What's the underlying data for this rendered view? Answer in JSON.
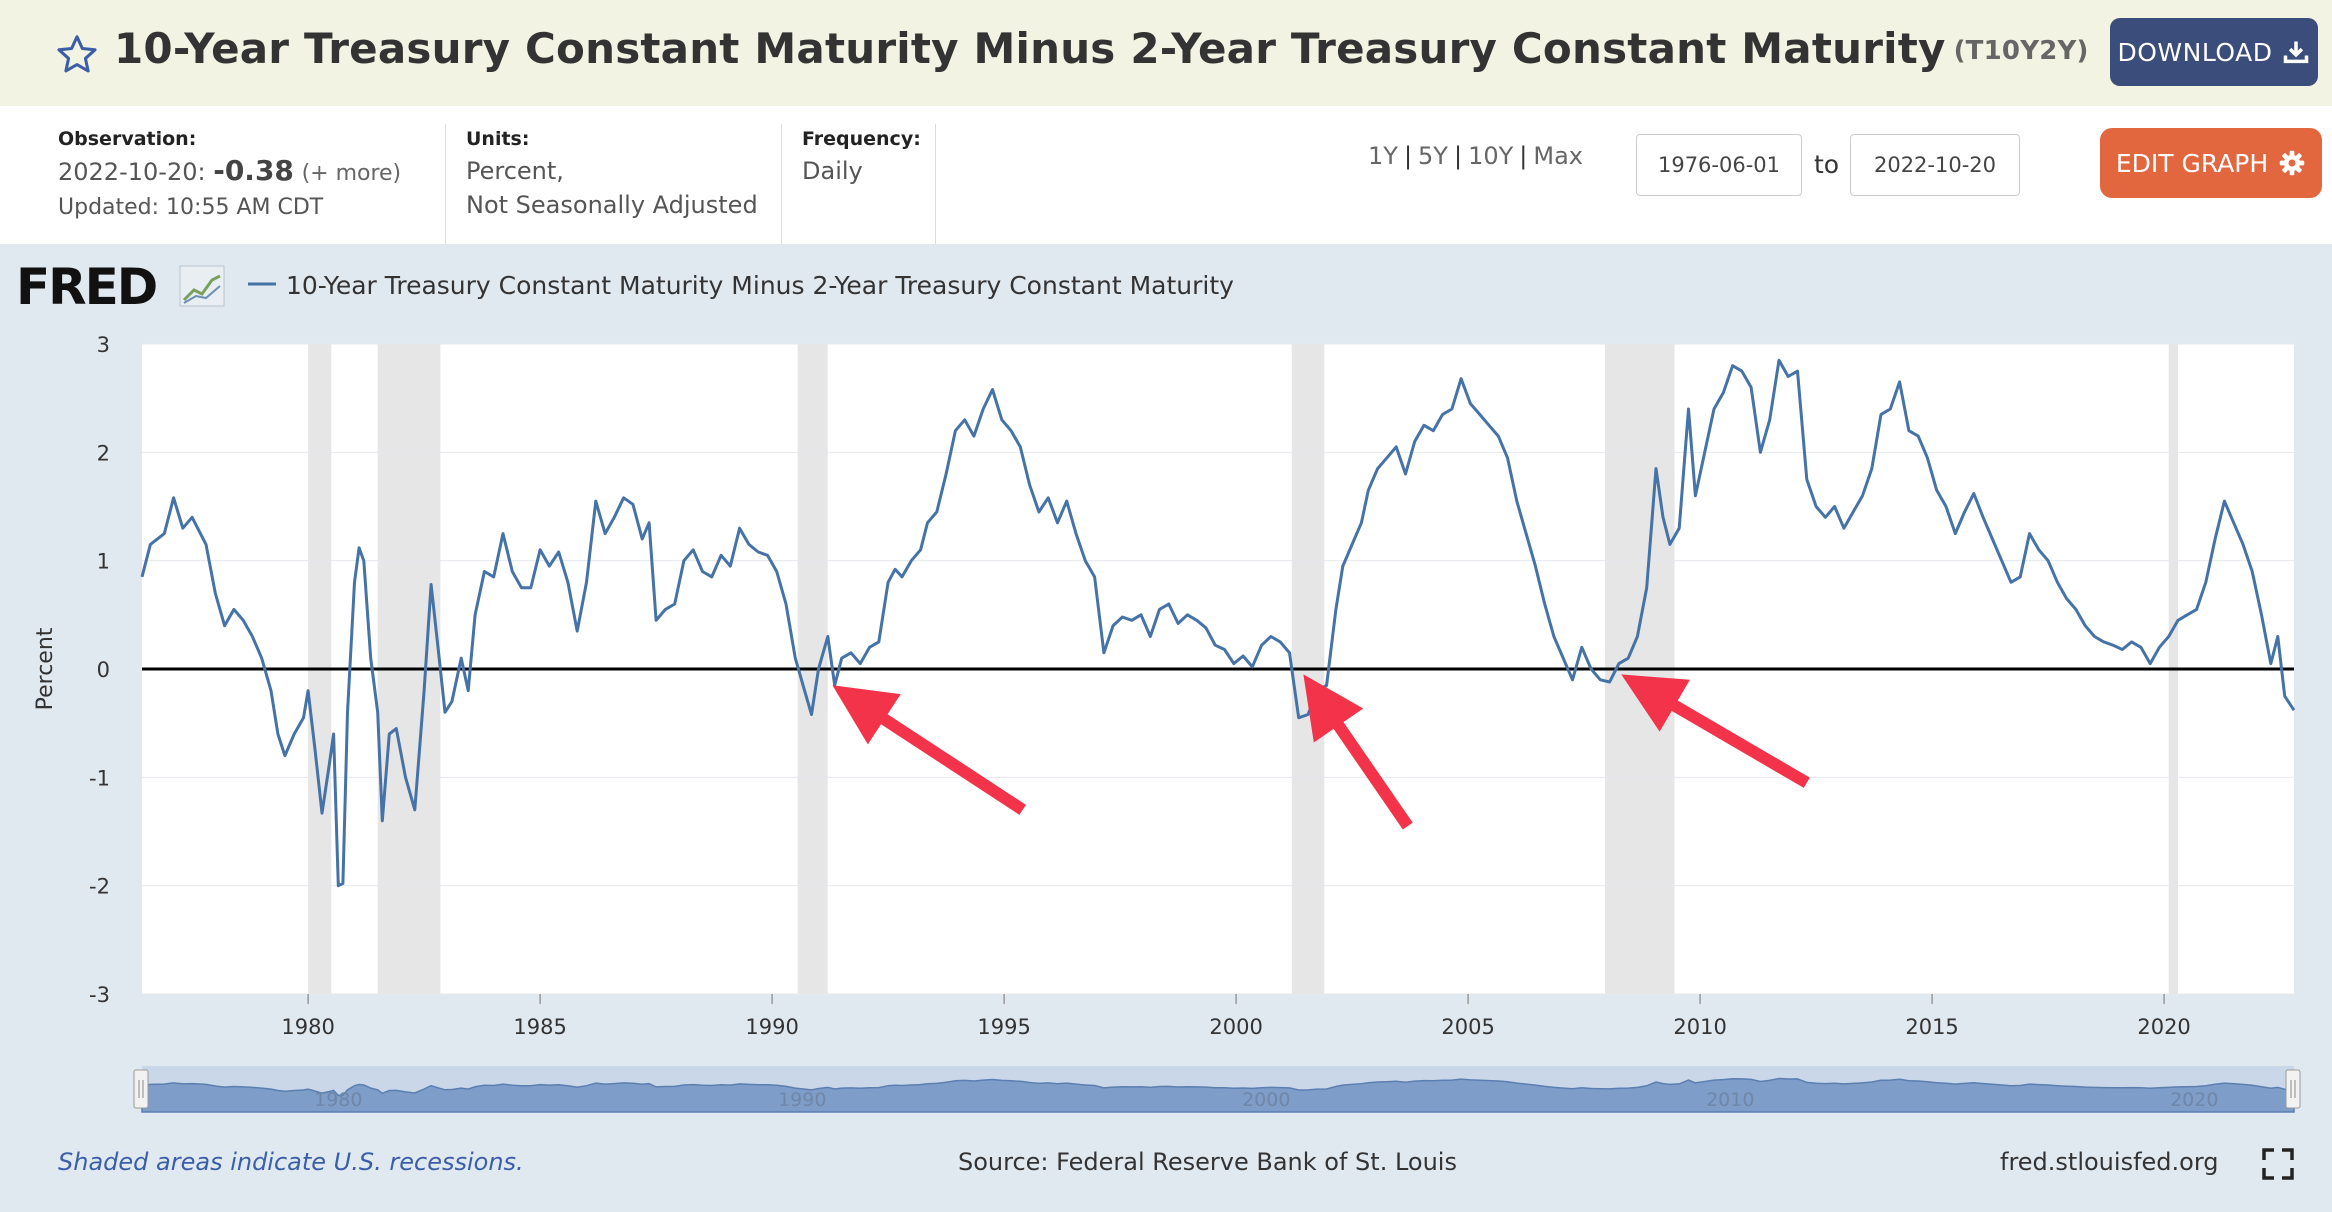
{
  "header": {
    "title": "10-Year Treasury Constant Maturity Minus 2-Year Treasury Constant Maturity",
    "series_id": "(T10Y2Y)",
    "download_label": "DOWNLOAD",
    "star_icon": "star-outline-icon",
    "download_icon": "download-icon"
  },
  "info": {
    "observation_label": "Observation:",
    "observation_date": "2022-10-20:",
    "observation_value": "-0.38",
    "observation_more": "(+ more)",
    "updated": "Updated: 10:55 AM CDT",
    "units_label": "Units:",
    "units_line1": "Percent,",
    "units_line2": "Not Seasonally Adjusted",
    "frequency_label": "Frequency:",
    "frequency_value": "Daily"
  },
  "controls": {
    "ranges": [
      "1Y",
      "5Y",
      "10Y",
      "Max"
    ],
    "start_date": "1976-06-01",
    "to_label": "to",
    "end_date": "2022-10-20",
    "edit_label": "EDIT GRAPH",
    "edit_icon": "gear-icon"
  },
  "footer": {
    "recession_note": "Shaded areas indicate U.S. recessions.",
    "source": "Source: Federal Reserve Bank of St. Louis",
    "site": "fred.stlouisfed.org",
    "fullscreen_icon": "fullscreen-icon"
  },
  "colors": {
    "line": "#4572a7",
    "recession": "#e6e6e6",
    "arrow": "#f2334a",
    "navigator": "#7f9dc9"
  },
  "chart_data": {
    "type": "line",
    "logo": "FRED",
    "legend": "10-Year Treasury Constant Maturity Minus 2-Year Treasury Constant Maturity",
    "ylabel": "Percent",
    "xlabel": "",
    "xlim": [
      1976.42,
      2022.8
    ],
    "ylim": [
      -3,
      3
    ],
    "yticks": [
      3,
      2,
      1,
      0,
      -1,
      -2,
      -3
    ],
    "xticks": [
      1980,
      1985,
      1990,
      1995,
      2000,
      2005,
      2010,
      2015,
      2020
    ],
    "navigator_labels": [
      "1980",
      "1990",
      "2000",
      "2010",
      "2020"
    ],
    "recessions": [
      [
        1980.0,
        1980.5
      ],
      [
        1981.5,
        1982.85
      ],
      [
        1990.55,
        1991.2
      ],
      [
        2001.2,
        2001.9
      ],
      [
        2007.95,
        2009.45
      ],
      [
        2020.1,
        2020.3
      ]
    ],
    "zero_line": 0,
    "arrows": [
      {
        "from": [
          1995.4,
          -1.3
        ],
        "to": [
          1991.3,
          -0.15
        ]
      },
      {
        "from": [
          2003.7,
          -1.45
        ],
        "to": [
          2001.45,
          -0.05
        ]
      },
      {
        "from": [
          2012.3,
          -1.05
        ],
        "to": [
          2008.3,
          -0.05
        ]
      }
    ],
    "series": [
      {
        "name": "10-Year Treasury Constant Maturity Minus 2-Year Treasury Constant Maturity",
        "points": [
          [
            1976.42,
            0.85
          ],
          [
            1976.6,
            1.15
          ],
          [
            1976.9,
            1.25
          ],
          [
            1977.1,
            1.58
          ],
          [
            1977.3,
            1.3
          ],
          [
            1977.5,
            1.4
          ],
          [
            1977.8,
            1.15
          ],
          [
            1978.0,
            0.7
          ],
          [
            1978.2,
            0.4
          ],
          [
            1978.4,
            0.55
          ],
          [
            1978.6,
            0.45
          ],
          [
            1978.8,
            0.3
          ],
          [
            1979.0,
            0.1
          ],
          [
            1979.2,
            -0.2
          ],
          [
            1979.35,
            -0.6
          ],
          [
            1979.5,
            -0.8
          ],
          [
            1979.7,
            -0.6
          ],
          [
            1979.9,
            -0.45
          ],
          [
            1980.0,
            -0.2
          ],
          [
            1980.15,
            -0.75
          ],
          [
            1980.3,
            -1.33
          ],
          [
            1980.45,
            -0.9
          ],
          [
            1980.55,
            -0.6
          ],
          [
            1980.65,
            -2.0
          ],
          [
            1980.75,
            -1.98
          ],
          [
            1980.85,
            -0.4
          ],
          [
            1981.0,
            0.8
          ],
          [
            1981.1,
            1.12
          ],
          [
            1981.2,
            1.0
          ],
          [
            1981.35,
            0.1
          ],
          [
            1981.5,
            -0.4
          ],
          [
            1981.6,
            -1.4
          ],
          [
            1981.75,
            -0.6
          ],
          [
            1981.9,
            -0.55
          ],
          [
            1982.1,
            -1.0
          ],
          [
            1982.3,
            -1.3
          ],
          [
            1982.5,
            -0.2
          ],
          [
            1982.65,
            0.78
          ],
          [
            1982.8,
            0.2
          ],
          [
            1982.95,
            -0.4
          ],
          [
            1983.1,
            -0.3
          ],
          [
            1983.3,
            0.1
          ],
          [
            1983.45,
            -0.2
          ],
          [
            1983.6,
            0.5
          ],
          [
            1983.8,
            0.9
          ],
          [
            1984.0,
            0.85
          ],
          [
            1984.2,
            1.25
          ],
          [
            1984.4,
            0.9
          ],
          [
            1984.6,
            0.75
          ],
          [
            1984.8,
            0.75
          ],
          [
            1985.0,
            1.1
          ],
          [
            1985.2,
            0.95
          ],
          [
            1985.4,
            1.08
          ],
          [
            1985.6,
            0.8
          ],
          [
            1985.8,
            0.35
          ],
          [
            1986.0,
            0.8
          ],
          [
            1986.2,
            1.55
          ],
          [
            1986.4,
            1.25
          ],
          [
            1986.6,
            1.4
          ],
          [
            1986.8,
            1.58
          ],
          [
            1987.0,
            1.52
          ],
          [
            1987.2,
            1.2
          ],
          [
            1987.35,
            1.35
          ],
          [
            1987.5,
            0.45
          ],
          [
            1987.7,
            0.55
          ],
          [
            1987.9,
            0.6
          ],
          [
            1988.1,
            1.0
          ],
          [
            1988.3,
            1.1
          ],
          [
            1988.5,
            0.9
          ],
          [
            1988.7,
            0.85
          ],
          [
            1988.9,
            1.05
          ],
          [
            1989.1,
            0.95
          ],
          [
            1989.3,
            1.3
          ],
          [
            1989.5,
            1.15
          ],
          [
            1989.7,
            1.08
          ],
          [
            1989.9,
            1.05
          ],
          [
            1990.1,
            0.9
          ],
          [
            1990.3,
            0.6
          ],
          [
            1990.5,
            0.1
          ],
          [
            1990.7,
            -0.2
          ],
          [
            1990.85,
            -0.42
          ],
          [
            1991.0,
            0.0
          ],
          [
            1991.2,
            0.3
          ],
          [
            1991.35,
            -0.15
          ],
          [
            1991.5,
            0.1
          ],
          [
            1991.7,
            0.15
          ],
          [
            1991.9,
            0.05
          ],
          [
            1992.1,
            0.2
          ],
          [
            1992.3,
            0.25
          ],
          [
            1992.5,
            0.8
          ],
          [
            1992.65,
            0.92
          ],
          [
            1992.8,
            0.85
          ],
          [
            1993.0,
            1.0
          ],
          [
            1993.2,
            1.1
          ],
          [
            1993.35,
            1.35
          ],
          [
            1993.55,
            1.45
          ],
          [
            1993.75,
            1.8
          ],
          [
            1993.95,
            2.2
          ],
          [
            1994.15,
            2.3
          ],
          [
            1994.35,
            2.15
          ],
          [
            1994.55,
            2.4
          ],
          [
            1994.75,
            2.58
          ],
          [
            1994.95,
            2.3
          ],
          [
            1995.15,
            2.2
          ],
          [
            1995.35,
            2.05
          ],
          [
            1995.55,
            1.7
          ],
          [
            1995.75,
            1.45
          ],
          [
            1995.95,
            1.58
          ],
          [
            1996.15,
            1.35
          ],
          [
            1996.35,
            1.55
          ],
          [
            1996.55,
            1.25
          ],
          [
            1996.75,
            1.0
          ],
          [
            1996.95,
            0.85
          ],
          [
            1997.15,
            0.15
          ],
          [
            1997.35,
            0.4
          ],
          [
            1997.55,
            0.48
          ],
          [
            1997.75,
            0.45
          ],
          [
            1997.95,
            0.5
          ],
          [
            1998.15,
            0.3
          ],
          [
            1998.35,
            0.55
          ],
          [
            1998.55,
            0.6
          ],
          [
            1998.75,
            0.42
          ],
          [
            1998.95,
            0.5
          ],
          [
            1999.15,
            0.45
          ],
          [
            1999.35,
            0.38
          ],
          [
            1999.55,
            0.22
          ],
          [
            1999.75,
            0.18
          ],
          [
            1999.95,
            0.05
          ],
          [
            2000.15,
            0.12
          ],
          [
            2000.35,
            0.02
          ],
          [
            2000.55,
            0.22
          ],
          [
            2000.75,
            0.3
          ],
          [
            2000.95,
            0.25
          ],
          [
            2001.15,
            0.15
          ],
          [
            2001.35,
            -0.45
          ],
          [
            2001.55,
            -0.42
          ],
          [
            2001.75,
            -0.2
          ],
          [
            2001.95,
            -0.15
          ],
          [
            2002.15,
            0.55
          ],
          [
            2002.3,
            0.95
          ],
          [
            2002.5,
            1.15
          ],
          [
            2002.7,
            1.35
          ],
          [
            2002.85,
            1.65
          ],
          [
            2003.05,
            1.85
          ],
          [
            2003.25,
            1.95
          ],
          [
            2003.45,
            2.05
          ],
          [
            2003.65,
            1.8
          ],
          [
            2003.85,
            2.1
          ],
          [
            2004.05,
            2.25
          ],
          [
            2004.25,
            2.2
          ],
          [
            2004.45,
            2.35
          ],
          [
            2004.65,
            2.4
          ],
          [
            2004.85,
            2.68
          ],
          [
            2005.05,
            2.45
          ],
          [
            2005.25,
            2.35
          ],
          [
            2005.45,
            2.25
          ],
          [
            2005.65,
            2.15
          ],
          [
            2005.85,
            1.95
          ],
          [
            2006.05,
            1.55
          ],
          [
            2006.25,
            1.25
          ],
          [
            2006.45,
            0.95
          ],
          [
            2006.65,
            0.6
          ],
          [
            2006.85,
            0.3
          ],
          [
            2007.05,
            0.1
          ],
          [
            2007.25,
            -0.1
          ],
          [
            2007.45,
            0.2
          ],
          [
            2007.65,
            0.0
          ],
          [
            2007.85,
            -0.1
          ],
          [
            2008.05,
            -0.12
          ],
          [
            2008.25,
            0.05
          ],
          [
            2008.45,
            0.1
          ],
          [
            2008.65,
            0.3
          ],
          [
            2008.85,
            0.75
          ],
          [
            2009.05,
            1.85
          ],
          [
            2009.2,
            1.4
          ],
          [
            2009.35,
            1.15
          ],
          [
            2009.55,
            1.3
          ],
          [
            2009.75,
            2.4
          ],
          [
            2009.9,
            1.6
          ],
          [
            2010.1,
            2.0
          ],
          [
            2010.3,
            2.4
          ],
          [
            2010.5,
            2.55
          ],
          [
            2010.7,
            2.8
          ],
          [
            2010.9,
            2.75
          ],
          [
            2011.1,
            2.6
          ],
          [
            2011.3,
            2.0
          ],
          [
            2011.5,
            2.3
          ],
          [
            2011.7,
            2.85
          ],
          [
            2011.9,
            2.7
          ],
          [
            2012.1,
            2.75
          ],
          [
            2012.3,
            1.75
          ],
          [
            2012.5,
            1.5
          ],
          [
            2012.7,
            1.4
          ],
          [
            2012.9,
            1.5
          ],
          [
            2013.1,
            1.3
          ],
          [
            2013.3,
            1.45
          ],
          [
            2013.5,
            1.6
          ],
          [
            2013.7,
            1.85
          ],
          [
            2013.9,
            2.35
          ],
          [
            2014.1,
            2.4
          ],
          [
            2014.3,
            2.65
          ],
          [
            2014.5,
            2.2
          ],
          [
            2014.7,
            2.15
          ],
          [
            2014.9,
            1.95
          ],
          [
            2015.1,
            1.65
          ],
          [
            2015.3,
            1.5
          ],
          [
            2015.5,
            1.25
          ],
          [
            2015.7,
            1.45
          ],
          [
            2015.9,
            1.62
          ],
          [
            2016.1,
            1.4
          ],
          [
            2016.3,
            1.2
          ],
          [
            2016.5,
            1.0
          ],
          [
            2016.7,
            0.8
          ],
          [
            2016.9,
            0.85
          ],
          [
            2017.1,
            1.25
          ],
          [
            2017.3,
            1.1
          ],
          [
            2017.5,
            1.0
          ],
          [
            2017.7,
            0.8
          ],
          [
            2017.9,
            0.65
          ],
          [
            2018.1,
            0.55
          ],
          [
            2018.3,
            0.4
          ],
          [
            2018.5,
            0.3
          ],
          [
            2018.7,
            0.25
          ],
          [
            2018.9,
            0.22
          ],
          [
            2019.1,
            0.18
          ],
          [
            2019.3,
            0.25
          ],
          [
            2019.5,
            0.2
          ],
          [
            2019.7,
            0.05
          ],
          [
            2019.9,
            0.2
          ],
          [
            2020.1,
            0.3
          ],
          [
            2020.3,
            0.45
          ],
          [
            2020.5,
            0.5
          ],
          [
            2020.7,
            0.55
          ],
          [
            2020.9,
            0.8
          ],
          [
            2021.1,
            1.2
          ],
          [
            2021.3,
            1.55
          ],
          [
            2021.5,
            1.35
          ],
          [
            2021.7,
            1.15
          ],
          [
            2021.9,
            0.9
          ],
          [
            2022.1,
            0.5
          ],
          [
            2022.3,
            0.05
          ],
          [
            2022.45,
            0.3
          ],
          [
            2022.6,
            -0.25
          ],
          [
            2022.8,
            -0.38
          ]
        ]
      }
    ]
  }
}
